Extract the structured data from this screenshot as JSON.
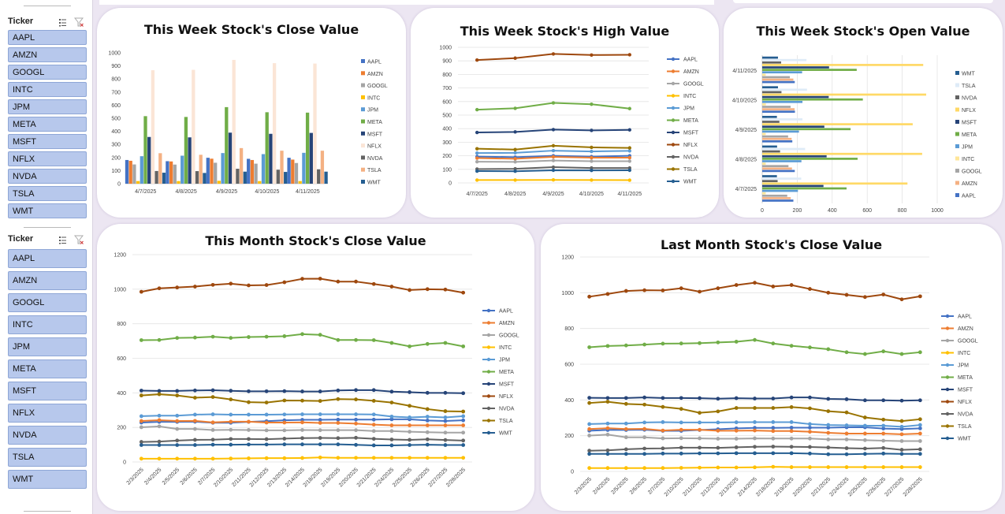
{
  "colors": {
    "AAPL": "#4472c4",
    "AMZN": "#ed7d31",
    "GOOGL": "#a5a5a5",
    "INTC": "#ffc000",
    "JPM": "#5b9bd5",
    "META": "#70ad47",
    "MSFT": "#264478",
    "NFLX": "#9e480e",
    "NVDA": "#636363",
    "TSLA": "#997300",
    "WMT": "#255e91",
    "NFLX_bar": "#fbe5d6",
    "TSLA_bar": "#f4b183",
    "TSLA_hbar": "#deebf7",
    "NFLX_hbar": "#ffd966",
    "INTC_hbar": "#ffe699",
    "AMZN_hbar": "#f4b183"
  },
  "slicers": [
    {
      "title": "Ticker",
      "items": [
        "AAPL",
        "AMZN",
        "GOOGL",
        "INTC",
        "JPM",
        "META",
        "MSFT",
        "NFLX",
        "NVDA",
        "TSLA",
        "WMT"
      ]
    },
    {
      "title": "Ticker",
      "items": [
        "AAPL",
        "AMZN",
        "GOOGL",
        "INTC",
        "JPM",
        "META",
        "MSFT",
        "NFLX",
        "NVDA",
        "TSLA",
        "WMT"
      ]
    }
  ],
  "charts": {
    "weekClose": {
      "title": "This Week Stock's Close Value"
    },
    "weekHigh": {
      "title": "This Week Stock's High Value"
    },
    "weekOpen": {
      "title": "This Week Stock's Open Value"
    },
    "monthClose": {
      "title": "This Month Stock's Close Value"
    },
    "lastMonthClose": {
      "title": "Last Month Stock's Close Value"
    }
  },
  "chart_data": [
    {
      "id": "weekClose",
      "type": "bar",
      "title": "This Week Stock's Close Value",
      "categories": [
        "4/7/2025",
        "4/8/2025",
        "4/9/2025",
        "4/10/2025",
        "4/11/2025"
      ],
      "ylim": [
        0,
        1000
      ],
      "yticks": [
        0,
        100,
        200,
        300,
        400,
        500,
        600,
        700,
        800,
        900,
        1000
      ],
      "legend": "right",
      "series": [
        {
          "name": "AAPL",
          "values": [
            181,
            172,
            198,
            190,
            198
          ]
        },
        {
          "name": "AMZN",
          "values": [
            175,
            170,
            191,
            181,
            184
          ]
        },
        {
          "name": "GOOGL",
          "values": [
            147,
            146,
            160,
            153,
            158
          ]
        },
        {
          "name": "INTC",
          "values": [
            20,
            20,
            22,
            20,
            20
          ]
        },
        {
          "name": "JPM",
          "values": [
            210,
            214,
            234,
            226,
            236
          ]
        },
        {
          "name": "META",
          "values": [
            516,
            510,
            585,
            546,
            543
          ]
        },
        {
          "name": "MSFT",
          "values": [
            357,
            354,
            390,
            381,
            388
          ]
        },
        {
          "name": "NFLX",
          "values": [
            867,
            870,
            946,
            921,
            918
          ]
        },
        {
          "name": "NVDA",
          "values": [
            97,
            96,
            114,
            107,
            110
          ]
        },
        {
          "name": "TSLA",
          "values": [
            233,
            221,
            272,
            252,
            252
          ]
        },
        {
          "name": "WMT",
          "values": [
            84,
            82,
            92,
            90,
            92
          ]
        }
      ]
    },
    {
      "id": "weekHigh",
      "type": "line",
      "title": "This Week Stock's High Value",
      "categories": [
        "4/7/2025",
        "4/8/2025",
        "4/9/2025",
        "4/10/2025",
        "4/11/2025"
      ],
      "ylim": [
        0,
        1000
      ],
      "yticks": [
        0,
        100,
        200,
        300,
        400,
        500,
        600,
        700,
        800,
        900,
        1000
      ],
      "legend": "right",
      "series": [
        {
          "name": "AAPL",
          "values": [
            194,
            190,
            200,
            194,
            200
          ]
        },
        {
          "name": "AMZN",
          "values": [
            183,
            178,
            192,
            186,
            186
          ]
        },
        {
          "name": "GOOGL",
          "values": [
            156,
            155,
            165,
            160,
            160
          ]
        },
        {
          "name": "INTC",
          "values": [
            21,
            21,
            22,
            21,
            20
          ]
        },
        {
          "name": "JPM",
          "values": [
            220,
            222,
            238,
            232,
            236
          ]
        },
        {
          "name": "META",
          "values": [
            540,
            550,
            590,
            580,
            548
          ]
        },
        {
          "name": "MSFT",
          "values": [
            372,
            376,
            393,
            387,
            391
          ]
        },
        {
          "name": "NFLX",
          "values": [
            906,
            920,
            951,
            943,
            945
          ]
        },
        {
          "name": "NVDA",
          "values": [
            102,
            104,
            116,
            110,
            110
          ]
        },
        {
          "name": "TSLA",
          "values": [
            252,
            246,
            274,
            262,
            258
          ]
        },
        {
          "name": "WMT",
          "values": [
            87,
            86,
            93,
            92,
            93
          ]
        }
      ]
    },
    {
      "id": "weekOpen",
      "type": "bar",
      "orientation": "horizontal",
      "title": "This Week Stock's Open Value",
      "categories": [
        "4/7/2025",
        "4/8/2025",
        "4/9/2025",
        "4/10/2025",
        "4/11/2025"
      ],
      "xlim": [
        0,
        1000
      ],
      "xticks": [
        0,
        200,
        400,
        600,
        800,
        1000
      ],
      "legend": "right",
      "legend_order": [
        "WMT",
        "TSLA",
        "NVDA",
        "NFLX",
        "MSFT",
        "META",
        "JPM",
        "INTC",
        "GOOGL",
        "AMZN",
        "AAPL"
      ],
      "series": [
        {
          "name": "AAPL",
          "values": [
            178,
            186,
            172,
            187,
            186
          ]
        },
        {
          "name": "AMZN",
          "values": [
            163,
            170,
            168,
            185,
            178
          ]
        },
        {
          "name": "GOOGL",
          "values": [
            143,
            150,
            148,
            162,
            158
          ]
        },
        {
          "name": "INTC",
          "values": [
            20,
            20,
            20,
            21,
            20
          ]
        },
        {
          "name": "JPM",
          "values": [
            204,
            224,
            210,
            230,
            228
          ]
        },
        {
          "name": "META",
          "values": [
            482,
            545,
            505,
            575,
            540
          ]
        },
        {
          "name": "MSFT",
          "values": [
            350,
            368,
            355,
            380,
            382
          ]
        },
        {
          "name": "NFLX",
          "values": [
            830,
            914,
            860,
            937,
            920
          ]
        },
        {
          "name": "NVDA",
          "values": [
            88,
            102,
            98,
            110,
            108
          ]
        },
        {
          "name": "TSLA",
          "values": [
            223,
            245,
            230,
            256,
            253
          ]
        },
        {
          "name": "WMT",
          "values": [
            84,
            85,
            84,
            90,
            90
          ]
        }
      ]
    },
    {
      "id": "monthClose",
      "type": "line",
      "title": "This Month Stock's Close Value",
      "categories": [
        "2/3/2025",
        "2/4/2025",
        "2/5/2025",
        "2/6/2025",
        "2/7/2025",
        "2/10/2025",
        "2/11/2025",
        "2/12/2025",
        "2/13/2025",
        "2/14/2025",
        "2/18/2025",
        "2/19/2025",
        "2/20/2025",
        "2/21/2025",
        "2/24/2025",
        "2/25/2025",
        "2/26/2025",
        "2/27/2025",
        "2/28/2025"
      ],
      "ylim": [
        0,
        1200
      ],
      "yticks": [
        0,
        200,
        400,
        600,
        800,
        1000,
        1200
      ],
      "legend": "right",
      "series": [
        {
          "name": "AAPL",
          "values": [
            228,
            232,
            232,
            233,
            227,
            227,
            232,
            236,
            241,
            244,
            244,
            245,
            245,
            245,
            247,
            247,
            240,
            237,
            241
          ]
        },
        {
          "name": "AMZN",
          "values": [
            237,
            242,
            237,
            238,
            229,
            233,
            233,
            228,
            228,
            229,
            226,
            226,
            222,
            216,
            212,
            212,
            212,
            212,
            212
          ]
        },
        {
          "name": "GOOGL",
          "values": [
            201,
            206,
            191,
            191,
            185,
            186,
            185,
            183,
            183,
            185,
            184,
            184,
            184,
            179,
            179,
            175,
            172,
            170,
            170
          ]
        },
        {
          "name": "INTC",
          "values": [
            19,
            19,
            19,
            19,
            19,
            20,
            21,
            22,
            22,
            23,
            26,
            24,
            24,
            24,
            24,
            24,
            24,
            24,
            24
          ]
        },
        {
          "name": "JPM",
          "values": [
            265,
            268,
            268,
            274,
            276,
            274,
            274,
            274,
            275,
            276,
            276,
            276,
            276,
            275,
            263,
            258,
            262,
            258,
            265
          ]
        },
        {
          "name": "META",
          "values": [
            705,
            706,
            718,
            720,
            725,
            718,
            723,
            725,
            728,
            740,
            736,
            706,
            706,
            705,
            689,
            669,
            683,
            689,
            669
          ]
        },
        {
          "name": "MSFT",
          "values": [
            413,
            411,
            411,
            414,
            415,
            412,
            409,
            409,
            410,
            408,
            408,
            414,
            416,
            416,
            407,
            404,
            400,
            400,
            398
          ]
        },
        {
          "name": "NFLX",
          "values": [
            985,
            1005,
            1010,
            1015,
            1025,
            1032,
            1022,
            1024,
            1040,
            1060,
            1061,
            1044,
            1044,
            1030,
            1015,
            995,
            1000,
            998,
            980
          ]
        },
        {
          "name": "NVDA",
          "values": [
            116,
            118,
            124,
            128,
            129,
            133,
            133,
            132,
            135,
            138,
            139,
            138,
            140,
            134,
            130,
            128,
            131,
            127,
            124
          ]
        },
        {
          "name": "TSLA",
          "values": [
            385,
            392,
            385,
            372,
            376,
            362,
            346,
            344,
            356,
            355,
            353,
            364,
            362,
            354,
            344,
            325,
            306,
            294,
            292
          ]
        },
        {
          "name": "WMT",
          "values": [
            98,
            98,
            98,
            98,
            100,
            100,
            101,
            101,
            102,
            102,
            102,
            102,
            99,
            96,
            96,
            98,
            100,
            98,
            98
          ]
        }
      ]
    },
    {
      "id": "lastMonthClose",
      "type": "line",
      "title": "Last Month Stock's Close Value",
      "categories": [
        "2/3/2025",
        "2/4/2025",
        "2/5/2025",
        "2/6/2025",
        "2/7/2025",
        "2/10/2025",
        "2/11/2025",
        "2/12/2025",
        "2/13/2025",
        "2/14/2025",
        "2/18/2025",
        "2/19/2025",
        "2/20/2025",
        "2/21/2025",
        "2/24/2025",
        "2/25/2025",
        "2/26/2025",
        "2/27/2025",
        "2/28/2025"
      ],
      "ylim": [
        0,
        1200
      ],
      "yticks": [
        0,
        200,
        400,
        600,
        800,
        1000,
        1200
      ],
      "legend": "right",
      "series": [
        {
          "name": "AAPL",
          "values": [
            228,
            232,
            232,
            233,
            227,
            227,
            232,
            236,
            241,
            244,
            244,
            245,
            245,
            245,
            247,
            247,
            240,
            237,
            241
          ]
        },
        {
          "name": "AMZN",
          "values": [
            237,
            242,
            237,
            238,
            229,
            233,
            233,
            228,
            228,
            229,
            226,
            226,
            222,
            216,
            212,
            212,
            212,
            208,
            212
          ]
        },
        {
          "name": "GOOGL",
          "values": [
            201,
            206,
            191,
            191,
            185,
            186,
            185,
            183,
            183,
            185,
            184,
            184,
            184,
            179,
            179,
            175,
            172,
            170,
            170
          ]
        },
        {
          "name": "INTC",
          "values": [
            19,
            19,
            19,
            19,
            19,
            20,
            21,
            22,
            22,
            23,
            26,
            24,
            24,
            24,
            24,
            24,
            24,
            24,
            24
          ]
        },
        {
          "name": "JPM",
          "values": [
            265,
            268,
            268,
            274,
            276,
            274,
            274,
            274,
            275,
            276,
            276,
            276,
            265,
            260,
            258,
            256,
            256,
            250,
            260
          ]
        },
        {
          "name": "META",
          "values": [
            695,
            702,
            705,
            710,
            715,
            716,
            718,
            722,
            726,
            736,
            716,
            703,
            694,
            684,
            667,
            657,
            672,
            657,
            667
          ]
        },
        {
          "name": "MSFT",
          "values": [
            412,
            411,
            411,
            414,
            411,
            411,
            410,
            407,
            410,
            408,
            408,
            414,
            414,
            406,
            404,
            398,
            398,
            396,
            398
          ]
        },
        {
          "name": "NFLX",
          "values": [
            978,
            993,
            1010,
            1014,
            1013,
            1025,
            1006,
            1025,
            1043,
            1056,
            1035,
            1043,
            1021,
            1000,
            988,
            976,
            990,
            963,
            980
          ]
        },
        {
          "name": "NVDA",
          "values": [
            116,
            118,
            124,
            128,
            129,
            133,
            133,
            132,
            135,
            138,
            139,
            138,
            137,
            134,
            130,
            128,
            131,
            121,
            124
          ]
        },
        {
          "name": "TSLA",
          "values": [
            383,
            390,
            378,
            374,
            361,
            350,
            328,
            336,
            355,
            355,
            355,
            360,
            353,
            337,
            330,
            302,
            290,
            282,
            292
          ]
        },
        {
          "name": "WMT",
          "values": [
            98,
            98,
            98,
            98,
            100,
            100,
            101,
            101,
            102,
            102,
            102,
            102,
            100,
            96,
            96,
            98,
            100,
            98,
            98
          ]
        }
      ]
    }
  ]
}
